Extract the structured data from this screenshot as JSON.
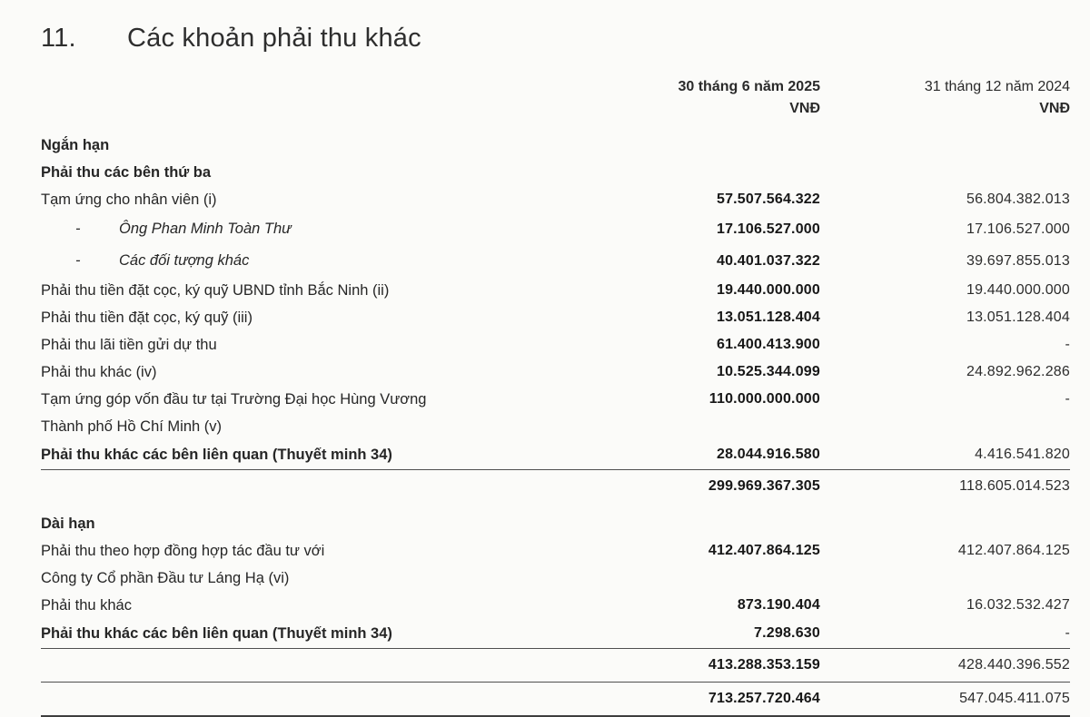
{
  "note": {
    "number": "11.",
    "title": "Các khoản phải thu khác"
  },
  "table": {
    "bullet": "-",
    "columns": [
      {
        "period": "30 tháng 6 năm 2025",
        "currency": "VNĐ"
      },
      {
        "period": "31 tháng 12 năm 2024",
        "currency": "VNĐ"
      }
    ],
    "rows": [
      {
        "type": "section",
        "label": "Ngắn hạn"
      },
      {
        "type": "section",
        "label": "Phải thu các bên thứ ba"
      },
      {
        "type": "item",
        "label": "Tạm ứng cho nhân viên (i)",
        "v1": "57.507.564.322",
        "v2": "56.804.382.013"
      },
      {
        "type": "subitem",
        "label": "Ông Phan Minh Toàn Thư",
        "v1": "17.106.527.000",
        "v2": "17.106.527.000"
      },
      {
        "type": "subitem",
        "label": "Các đối tượng khác",
        "v1": "40.401.037.322",
        "v2": "39.697.855.013"
      },
      {
        "type": "item",
        "label": "Phải thu tiền đặt cọc, ký quỹ UBND tỉnh Bắc Ninh (ii)",
        "v1": "19.440.000.000",
        "v2": "19.440.000.000"
      },
      {
        "type": "item",
        "label": "Phải thu tiền đặt cọc, ký quỹ (iii)",
        "v1": "13.051.128.404",
        "v2": "13.051.128.404"
      },
      {
        "type": "item",
        "label": "Phải thu lãi tiền gửi dự thu",
        "v1": "61.400.413.900",
        "v2": "-"
      },
      {
        "type": "item",
        "label": "Phải thu khác (iv)",
        "v1": "10.525.344.099",
        "v2": "24.892.962.286"
      },
      {
        "type": "item",
        "label": "Tạm ứng góp vốn đầu tư tại Trường Đại học Hùng Vương",
        "v1": "110.000.000.000",
        "v2": "-"
      },
      {
        "type": "item",
        "label": "Thành phố Hồ Chí Minh (v)",
        "v1": "",
        "v2": ""
      },
      {
        "type": "bold",
        "label": "Phải thu khác các bên liên quan (Thuyết minh 34)",
        "v1": "28.044.916.580",
        "v2": "4.416.541.820",
        "rule_below": true
      },
      {
        "type": "subtotal",
        "label": "",
        "v1": "299.969.367.305",
        "v2": "118.605.014.523"
      },
      {
        "type": "section",
        "label": "Dài hạn",
        "gap_before": 8
      },
      {
        "type": "item",
        "label": "Phải thu theo hợp đồng hợp tác đầu tư với",
        "v1": "412.407.864.125",
        "v2": "412.407.864.125"
      },
      {
        "type": "item",
        "label": "Công ty Cổ phần Đầu tư Láng Hạ (vi)",
        "v1": "",
        "v2": ""
      },
      {
        "type": "item",
        "label": "Phải thu khác",
        "v1": "873.190.404",
        "v2": "16.032.532.427"
      },
      {
        "type": "bold",
        "label": "Phải thu khác các bên liên quan (Thuyết minh 34)",
        "v1": "7.298.630",
        "v2": "-",
        "rule_below": true
      },
      {
        "type": "subtotal",
        "label": "",
        "v1": "413.288.353.159",
        "v2": "428.440.396.552",
        "rule_below": true
      },
      {
        "type": "total",
        "label": "",
        "v1": "713.257.720.464",
        "v2": "547.045.411.075",
        "rule_below": "thick"
      }
    ]
  }
}
